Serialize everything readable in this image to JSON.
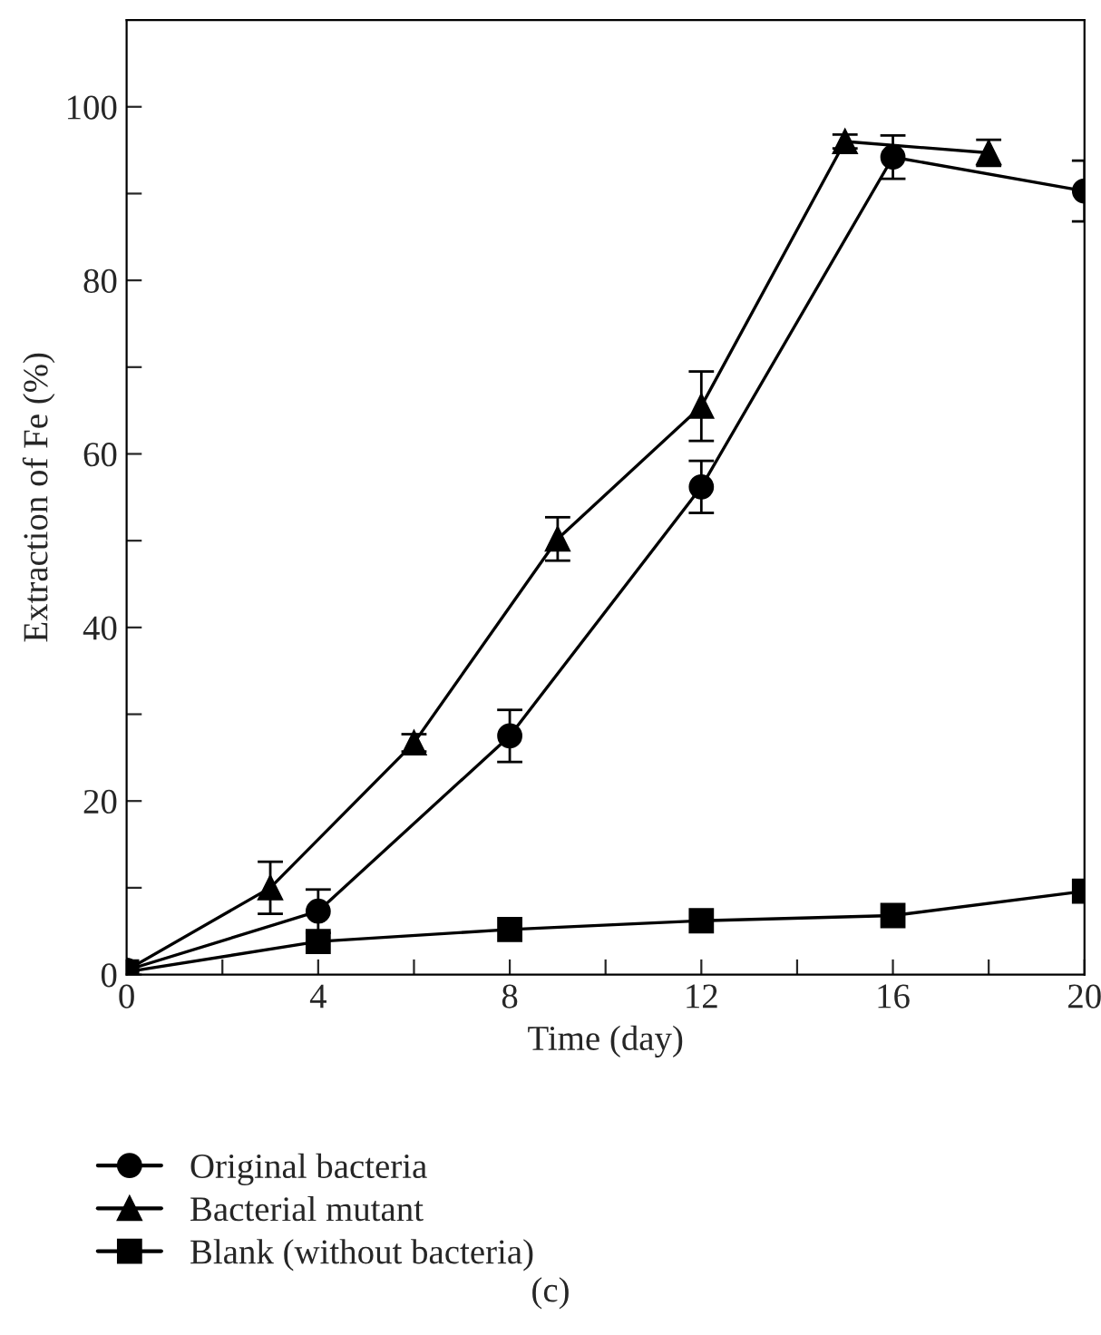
{
  "chart_data": {
    "type": "line",
    "xlabel": "Time (day)",
    "ylabel": "Extraction of Fe (%)",
    "xlim": [
      0,
      20
    ],
    "ylim": [
      0,
      110
    ],
    "xticks": [
      0,
      {
        "value": 2,
        "label": null
      },
      4,
      {
        "value": 6,
        "label": null
      },
      8,
      {
        "value": 10,
        "label": null
      },
      12,
      {
        "value": 14,
        "label": null
      },
      16,
      {
        "value": 18,
        "label": null
      },
      20
    ],
    "yticks": [
      0,
      {
        "value": 10,
        "label": null
      },
      20,
      {
        "value": 30,
        "label": null
      },
      40,
      {
        "value": 50,
        "label": null
      },
      60,
      {
        "value": 70,
        "label": null
      },
      80,
      {
        "value": 90,
        "label": null
      },
      100
    ],
    "legend": "bottom",
    "grid": false,
    "line_style": "solid",
    "series": [
      {
        "name": "Original bacteria",
        "color": "#000000",
        "marker": "circle",
        "x": [
          0,
          4,
          8,
          12,
          16,
          20
        ],
        "values": [
          0.5,
          7.3,
          27.5,
          56.2,
          94.2,
          90.3
        ],
        "errors": [
          null,
          2.5,
          3,
          3,
          2.5,
          3.5
        ]
      },
      {
        "name": "Bacterial mutant",
        "color": "#000000",
        "marker": "triangle",
        "x": [
          0,
          3,
          6,
          9,
          12,
          15,
          18
        ],
        "values": [
          0.5,
          10,
          26.7,
          50.2,
          65.5,
          96,
          94.7
        ],
        "errors": [
          null,
          3,
          1,
          2.5,
          4,
          0.8,
          1.5
        ]
      },
      {
        "name": "Blank (without bacteria)",
        "color": "#000000",
        "marker": "square",
        "x": [
          0,
          4,
          8,
          12,
          16,
          20
        ],
        "values": [
          0.3,
          3.8,
          5.2,
          6.2,
          6.8,
          9.6
        ]
      }
    ],
    "annotations": [
      "(c)"
    ]
  }
}
